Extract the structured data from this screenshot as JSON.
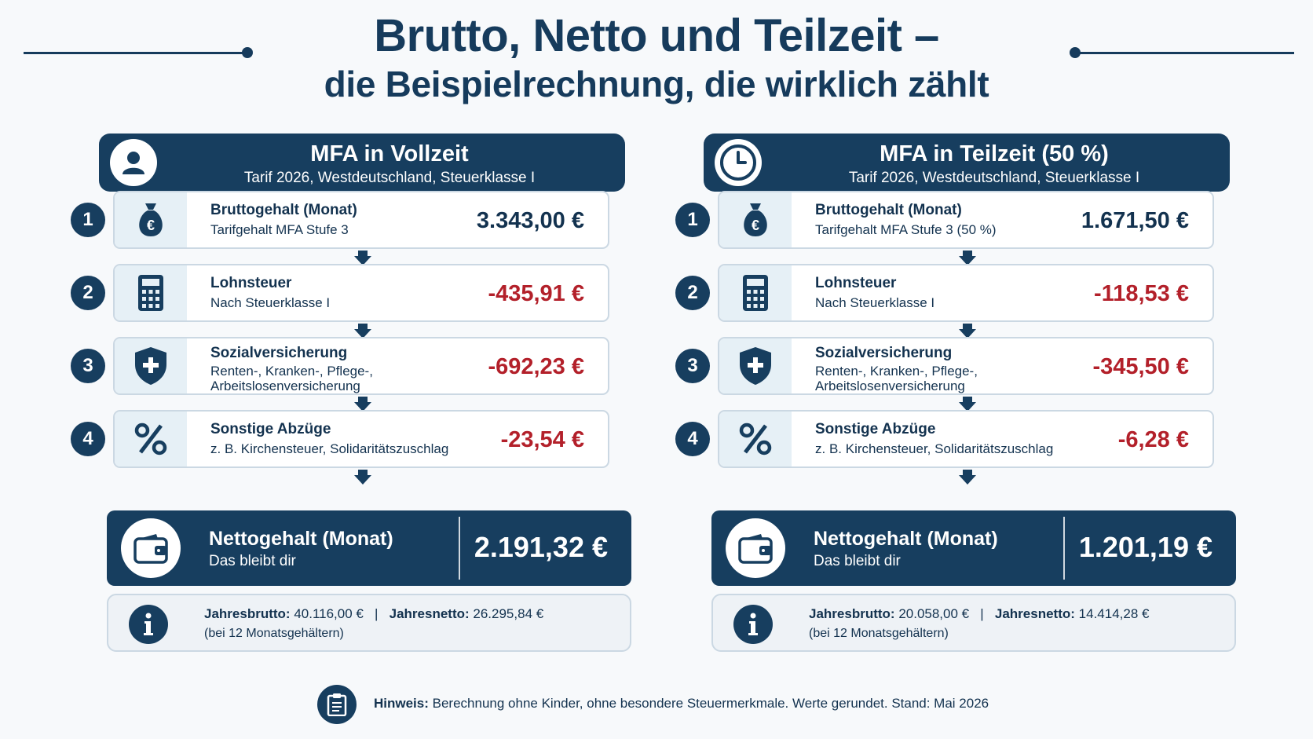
{
  "title": {
    "line1": "Brutto, Netto und Teilzeit –",
    "line2": "die Beispielrechnung, die wirklich zählt"
  },
  "colors": {
    "navy": "#173e5f",
    "negative": "#b3202a",
    "card_icon_bg": "#e6f0f6"
  },
  "columns": [
    {
      "header": {
        "title": "MFA in Vollzeit",
        "subtitle": "Tarif 2026, Westdeutschland, Steuerklasse I",
        "icon": "person-icon"
      },
      "steps": [
        {
          "num": "1",
          "icon": "money-bag-euro-icon",
          "title": "Bruttogehalt (Monat)",
          "subtitle": "Tarifgehalt MFA Stufe 3",
          "value": "3.343,00 €"
        },
        {
          "num": "2",
          "icon": "calculator-icon",
          "title": "Lohnsteuer",
          "subtitle": "Nach Steuerklasse I",
          "value": "-435,91 €"
        },
        {
          "num": "3",
          "icon": "shield-plus-icon",
          "title": "Sozialversicherung",
          "subtitle": "Renten-, Kranken-, Pflege-, Arbeitslosenversicherung",
          "value": "-692,23 €"
        },
        {
          "num": "4",
          "icon": "percent-icon",
          "title": "Sonstige Abzüge",
          "subtitle": "z. B. Kirchensteuer, Solidaritätszuschlag",
          "value": "-23,54 €"
        }
      ],
      "net": {
        "icon": "wallet-icon",
        "title": "Nettogehalt (Monat)",
        "subtitle": "Das bleibt dir",
        "value": "2.191,32 €"
      },
      "info": {
        "brutto_label": "Jahresbrutto:",
        "brutto_value": "40.116,00 €",
        "separator": "|",
        "netto_label": "Jahresnetto:",
        "netto_value": "26.295,84 €",
        "note": "(bei 12 Monatsgehältern)"
      }
    },
    {
      "header": {
        "title": "MFA in Teilzeit (50 %)",
        "subtitle": "Tarif 2026, Westdeutschland, Steuerklasse I",
        "icon": "clock-icon"
      },
      "steps": [
        {
          "num": "1",
          "icon": "money-bag-euro-icon",
          "title": "Bruttogehalt (Monat)",
          "subtitle": "Tarifgehalt MFA Stufe 3 (50 %)",
          "value": "1.671,50 €"
        },
        {
          "num": "2",
          "icon": "calculator-icon",
          "title": "Lohnsteuer",
          "subtitle": "Nach Steuerklasse I",
          "value": "-118,53 €"
        },
        {
          "num": "3",
          "icon": "shield-plus-icon",
          "title": "Sozialversicherung",
          "subtitle": "Renten-, Kranken-, Pflege-, Arbeitslosenversicherung",
          "value": "-345,50 €"
        },
        {
          "num": "4",
          "icon": "percent-icon",
          "title": "Sonstige Abzüge",
          "subtitle": "z. B. Kirchensteuer, Solidaritätszuschlag",
          "value": "-6,28 €"
        }
      ],
      "net": {
        "icon": "wallet-icon",
        "title": "Nettogehalt (Monat)",
        "subtitle": "Das bleibt dir",
        "value": "1.201,19 €"
      },
      "info": {
        "brutto_label": "Jahresbrutto:",
        "brutto_value": "20.058,00 €",
        "separator": "|",
        "netto_label": "Jahresnetto:",
        "netto_value": "14.414,28 €",
        "note": "(bei 12 Monatsgehältern)"
      }
    }
  ],
  "footer": {
    "icon": "clipboard-icon",
    "label": "Hinweis:",
    "text": "Berechnung ohne Kinder, ohne besondere Steuermerkmale. Werte gerundet. Stand: Mai 2026"
  }
}
